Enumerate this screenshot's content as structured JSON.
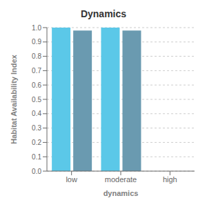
{
  "chart_data": {
    "type": "bar",
    "title": "Dynamics",
    "xlabel": "dynamics",
    "ylabel": "Habitat Availability Index",
    "categories": [
      "low",
      "moderate",
      "high"
    ],
    "series": [
      {
        "values": [
          1.0,
          1.0,
          0.0
        ],
        "color": "#5bc8e8"
      },
      {
        "values": [
          0.98,
          0.98,
          0.0
        ],
        "color": "#6a9ab0"
      }
    ],
    "ylim": [
      0.0,
      1.0
    ],
    "yticks": [
      {
        "value": 0.0,
        "label": "0.0"
      },
      0.1,
      0.2,
      0.3,
      0.4,
      0.5,
      0.6,
      0.7,
      0.8,
      0.9,
      {
        "value": 1.0,
        "label": "1.0"
      }
    ],
    "grid": true
  }
}
